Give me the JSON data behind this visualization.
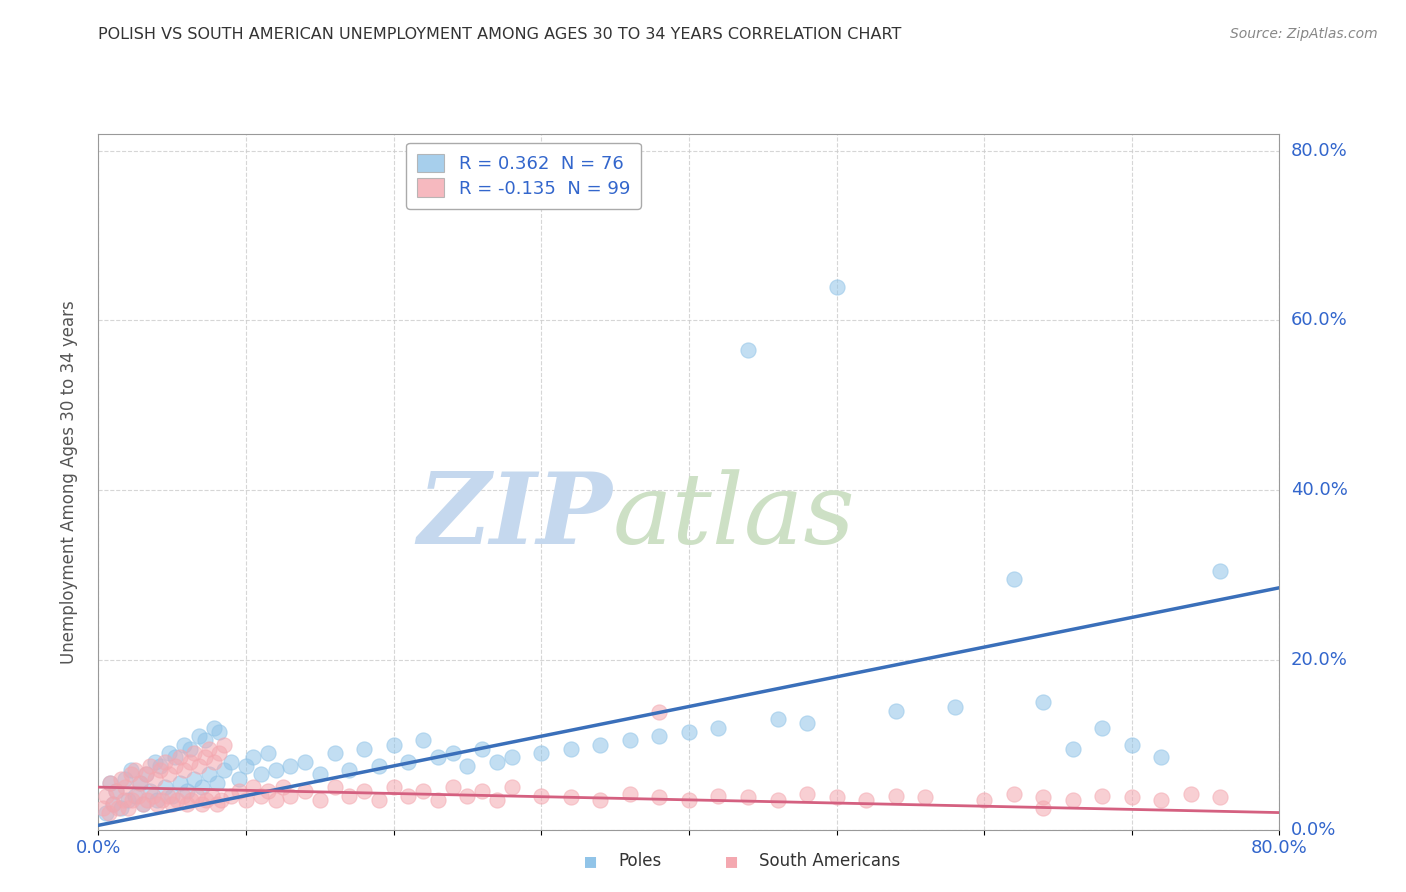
{
  "title": "POLISH VS SOUTH AMERICAN UNEMPLOYMENT AMONG AGES 30 TO 34 YEARS CORRELATION CHART",
  "source": "Source: ZipAtlas.com",
  "ylabel": "Unemployment Among Ages 30 to 34 years",
  "xlim": [
    0.0,
    0.8
  ],
  "ylim": [
    0.0,
    0.82
  ],
  "poles_R": 0.362,
  "poles_N": 76,
  "sa_R": -0.135,
  "sa_N": 99,
  "poles_color": "#91c4e8",
  "sa_color": "#f4a8b0",
  "poles_line_color": "#3a6fba",
  "sa_line_color": "#d46080",
  "background_color": "#ffffff",
  "grid_color": "#cccccc",
  "poles_x": [
    0.005,
    0.008,
    0.01,
    0.012,
    0.015,
    0.018,
    0.02,
    0.022,
    0.025,
    0.028,
    0.03,
    0.032,
    0.035,
    0.038,
    0.04,
    0.042,
    0.045,
    0.048,
    0.05,
    0.052,
    0.055,
    0.058,
    0.06,
    0.062,
    0.065,
    0.068,
    0.07,
    0.072,
    0.075,
    0.078,
    0.08,
    0.082,
    0.085,
    0.09,
    0.095,
    0.1,
    0.105,
    0.11,
    0.115,
    0.12,
    0.13,
    0.14,
    0.15,
    0.16,
    0.17,
    0.18,
    0.19,
    0.2,
    0.21,
    0.22,
    0.23,
    0.24,
    0.25,
    0.26,
    0.27,
    0.28,
    0.3,
    0.32,
    0.34,
    0.36,
    0.38,
    0.4,
    0.42,
    0.44,
    0.46,
    0.48,
    0.5,
    0.54,
    0.58,
    0.62,
    0.64,
    0.66,
    0.68,
    0.7,
    0.72,
    0.76
  ],
  "poles_y": [
    0.02,
    0.055,
    0.03,
    0.045,
    0.025,
    0.06,
    0.035,
    0.07,
    0.04,
    0.055,
    0.03,
    0.065,
    0.045,
    0.08,
    0.035,
    0.075,
    0.05,
    0.09,
    0.04,
    0.085,
    0.055,
    0.1,
    0.045,
    0.095,
    0.06,
    0.11,
    0.05,
    0.105,
    0.065,
    0.12,
    0.055,
    0.115,
    0.07,
    0.08,
    0.06,
    0.075,
    0.085,
    0.065,
    0.09,
    0.07,
    0.075,
    0.08,
    0.065,
    0.09,
    0.07,
    0.095,
    0.075,
    0.1,
    0.08,
    0.105,
    0.085,
    0.09,
    0.075,
    0.095,
    0.08,
    0.085,
    0.09,
    0.095,
    0.1,
    0.105,
    0.11,
    0.115,
    0.12,
    0.565,
    0.13,
    0.125,
    0.64,
    0.14,
    0.145,
    0.295,
    0.15,
    0.095,
    0.12,
    0.1,
    0.085,
    0.305
  ],
  "sa_x": [
    0.003,
    0.005,
    0.007,
    0.008,
    0.01,
    0.012,
    0.013,
    0.015,
    0.017,
    0.018,
    0.02,
    0.022,
    0.023,
    0.025,
    0.027,
    0.028,
    0.03,
    0.032,
    0.033,
    0.035,
    0.037,
    0.038,
    0.04,
    0.042,
    0.043,
    0.045,
    0.047,
    0.048,
    0.05,
    0.052,
    0.053,
    0.055,
    0.057,
    0.058,
    0.06,
    0.062,
    0.063,
    0.065,
    0.067,
    0.068,
    0.07,
    0.072,
    0.073,
    0.075,
    0.077,
    0.078,
    0.08,
    0.082,
    0.083,
    0.085,
    0.09,
    0.095,
    0.1,
    0.105,
    0.11,
    0.115,
    0.12,
    0.125,
    0.13,
    0.14,
    0.15,
    0.16,
    0.17,
    0.18,
    0.19,
    0.2,
    0.21,
    0.22,
    0.23,
    0.24,
    0.25,
    0.26,
    0.27,
    0.28,
    0.3,
    0.32,
    0.34,
    0.36,
    0.38,
    0.4,
    0.42,
    0.44,
    0.46,
    0.48,
    0.5,
    0.52,
    0.54,
    0.56,
    0.6,
    0.62,
    0.64,
    0.66,
    0.68,
    0.7,
    0.72,
    0.74,
    0.76,
    0.38,
    0.64
  ],
  "sa_y": [
    0.025,
    0.04,
    0.02,
    0.055,
    0.03,
    0.045,
    0.025,
    0.06,
    0.035,
    0.05,
    0.025,
    0.065,
    0.035,
    0.07,
    0.04,
    0.055,
    0.03,
    0.065,
    0.035,
    0.075,
    0.04,
    0.06,
    0.03,
    0.07,
    0.035,
    0.08,
    0.04,
    0.065,
    0.03,
    0.075,
    0.035,
    0.085,
    0.04,
    0.07,
    0.03,
    0.08,
    0.035,
    0.09,
    0.04,
    0.075,
    0.03,
    0.085,
    0.035,
    0.095,
    0.04,
    0.08,
    0.03,
    0.09,
    0.035,
    0.1,
    0.04,
    0.045,
    0.035,
    0.05,
    0.04,
    0.045,
    0.035,
    0.05,
    0.04,
    0.045,
    0.035,
    0.05,
    0.04,
    0.045,
    0.035,
    0.05,
    0.04,
    0.045,
    0.035,
    0.05,
    0.04,
    0.045,
    0.035,
    0.05,
    0.04,
    0.038,
    0.035,
    0.042,
    0.038,
    0.035,
    0.04,
    0.038,
    0.035,
    0.042,
    0.038,
    0.035,
    0.04,
    0.038,
    0.035,
    0.042,
    0.038,
    0.035,
    0.04,
    0.038,
    0.035,
    0.042,
    0.038,
    0.138,
    0.025
  ],
  "poles_line_x": [
    0.0,
    0.8
  ],
  "poles_line_y": [
    0.005,
    0.285
  ],
  "sa_line_x": [
    0.0,
    0.8
  ],
  "sa_line_y": [
    0.05,
    0.02
  ]
}
